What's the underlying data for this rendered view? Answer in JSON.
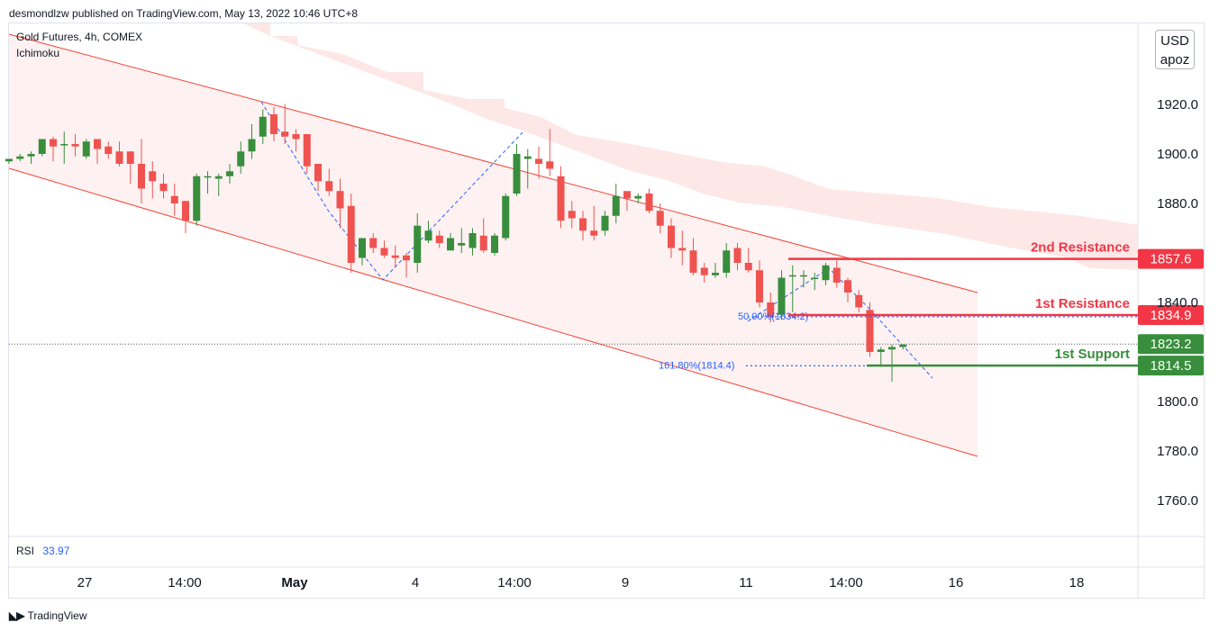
{
  "header": {
    "publisher_text": "desmondlzw published on TradingView.com, May 13, 2022 10:46 UTC+8"
  },
  "legend": {
    "symbol_line": "Gold Futures, 4h, COMEX",
    "indicator": "Ichimoku"
  },
  "currency": {
    "line1": "USD",
    "line2": "apoz"
  },
  "rsi": {
    "label": "RSI",
    "value": "33.97"
  },
  "footer": {
    "brand": "TradingView"
  },
  "colors": {
    "bull": "#26a69a",
    "bear": "#ef5350",
    "green_label": "#388e3c",
    "red_label": "#f23645",
    "cloud": "#fde4e4",
    "channel": "#fdeeee",
    "channel_line": "#f44336",
    "fib": "#2962ff"
  },
  "chart_data": {
    "type": "candlestick",
    "y_ticks": [
      1760,
      1780,
      1800,
      1820,
      1840,
      1860,
      1880,
      1900,
      1920,
      1940
    ],
    "y_tick_labels": [
      "1760.0",
      "1780.0",
      "1800.0",
      "",
      "1840.0",
      "",
      "1880.0",
      "1900.0",
      "1920.0",
      ""
    ],
    "ylim": [
      1746,
      1961
    ],
    "x_ticks": [
      {
        "label": "27",
        "bold": false
      },
      {
        "label": "14:00",
        "bold": false
      },
      {
        "label": "May",
        "bold": true
      },
      {
        "label": "4",
        "bold": false
      },
      {
        "label": "14:00",
        "bold": false
      },
      {
        "label": "9",
        "bold": false
      },
      {
        "label": "11",
        "bold": false
      },
      {
        "label": "14:00",
        "bold": false
      },
      {
        "label": "16",
        "bold": false
      },
      {
        "label": "18",
        "bold": false
      }
    ],
    "candles": [
      [
        1897,
        1898,
        1896,
        1898
      ],
      [
        1898,
        1900,
        1897,
        1899
      ],
      [
        1899,
        1901,
        1896,
        1900
      ],
      [
        1900,
        1906,
        1899,
        1906
      ],
      [
        1906,
        1907,
        1897,
        1903
      ],
      [
        1904,
        1909,
        1896,
        1904
      ],
      [
        1904,
        1908,
        1899,
        1903
      ],
      [
        1899,
        1906,
        1898,
        1905
      ],
      [
        1906,
        1906,
        1896,
        1902
      ],
      [
        1903,
        1905,
        1898,
        1900
      ],
      [
        1901,
        1905,
        1895,
        1896
      ],
      [
        1901,
        1901,
        1888,
        1896
      ],
      [
        1896,
        1906,
        1880,
        1886
      ],
      [
        1893,
        1897,
        1882,
        1889
      ],
      [
        1888,
        1892,
        1882,
        1885
      ],
      [
        1883,
        1888,
        1875,
        1880
      ],
      [
        1881,
        1881,
        1868,
        1873
      ],
      [
        1873,
        1892,
        1871,
        1891
      ],
      [
        1891,
        1893,
        1884,
        1891
      ],
      [
        1890,
        1892,
        1883,
        1891
      ],
      [
        1891,
        1896,
        1888,
        1893
      ],
      [
        1895,
        1905,
        1892,
        1901
      ],
      [
        1901,
        1912,
        1898,
        1906
      ],
      [
        1907,
        1918,
        1904,
        1915
      ],
      [
        1916,
        1919,
        1905,
        1908
      ],
      [
        1909,
        1920,
        1904,
        1907
      ],
      [
        1908,
        1910,
        1901,
        1906
      ],
      [
        1908,
        1908,
        1892,
        1895
      ],
      [
        1896,
        1896,
        1885,
        1889
      ],
      [
        1889,
        1894,
        1883,
        1885
      ],
      [
        1885,
        1890,
        1870,
        1878
      ],
      [
        1879,
        1884,
        1852,
        1856
      ],
      [
        1858,
        1866,
        1855,
        1866
      ],
      [
        1866,
        1868,
        1860,
        1862
      ],
      [
        1862,
        1865,
        1858,
        1859
      ],
      [
        1859,
        1863,
        1854,
        1858
      ],
      [
        1859,
        1860,
        1850,
        1857
      ],
      [
        1856,
        1876,
        1852,
        1871
      ],
      [
        1865,
        1873,
        1864,
        1869
      ],
      [
        1867,
        1869,
        1862,
        1864
      ],
      [
        1861,
        1868,
        1861,
        1866
      ],
      [
        1863,
        1870,
        1860,
        1864
      ],
      [
        1862,
        1870,
        1859,
        1868
      ],
      [
        1867,
        1874,
        1860,
        1861
      ],
      [
        1860,
        1868,
        1859,
        1867
      ],
      [
        1866,
        1884,
        1865,
        1883
      ],
      [
        1884,
        1904,
        1883,
        1900
      ],
      [
        1898,
        1902,
        1886,
        1899
      ],
      [
        1898,
        1903,
        1890,
        1896
      ],
      [
        1897,
        1910,
        1891,
        1894
      ],
      [
        1891,
        1895,
        1870,
        1873
      ],
      [
        1877,
        1881,
        1870,
        1874
      ],
      [
        1874,
        1877,
        1865,
        1869
      ],
      [
        1869,
        1879,
        1865,
        1867
      ],
      [
        1869,
        1877,
        1867,
        1875
      ],
      [
        1875,
        1888,
        1872,
        1883
      ],
      [
        1885,
        1884,
        1877,
        1882
      ],
      [
        1882,
        1884,
        1880,
        1883
      ],
      [
        1884,
        1886,
        1876,
        1877
      ],
      [
        1877,
        1880,
        1868,
        1871
      ],
      [
        1871,
        1874,
        1858,
        1862
      ],
      [
        1862,
        1869,
        1855,
        1861
      ],
      [
        1861,
        1866,
        1851,
        1852
      ],
      [
        1854,
        1856,
        1848,
        1851
      ],
      [
        1851,
        1856,
        1850,
        1852
      ],
      [
        1852,
        1864,
        1850,
        1861
      ],
      [
        1862,
        1864,
        1853,
        1856
      ],
      [
        1856,
        1862,
        1852,
        1853
      ],
      [
        1853,
        1857,
        1838,
        1840
      ],
      [
        1840,
        1844,
        1832,
        1834
      ],
      [
        1835,
        1853,
        1833,
        1850
      ],
      [
        1851,
        1855,
        1836,
        1851
      ],
      [
        1851,
        1853,
        1846,
        1851
      ],
      [
        1850,
        1852,
        1845,
        1850
      ],
      [
        1849,
        1856,
        1847,
        1855
      ],
      [
        1854,
        1857,
        1846,
        1848
      ],
      [
        1849,
        1850,
        1840,
        1844
      ],
      [
        1843,
        1845,
        1836,
        1838
      ],
      [
        1837,
        1840,
        1818,
        1820
      ],
      [
        1820,
        1822,
        1814,
        1821
      ],
      [
        1821,
        1823,
        1808,
        1822
      ],
      [
        1822,
        1823,
        1821,
        1823
      ]
    ],
    "levels": [
      {
        "label": "2nd Resistance",
        "value": 1857.6,
        "price_label": "1857.6",
        "kind": "resistance"
      },
      {
        "label": "1st Resistance",
        "value": 1834.9,
        "price_label": "1834.9",
        "kind": "resistance"
      },
      {
        "label": "1st Support",
        "value": 1814.5,
        "price_label": "1814.5",
        "kind": "support"
      }
    ],
    "last_price": {
      "value": 1823.2,
      "price_label": "1823.2"
    },
    "fib_labels": [
      {
        "text": "50.00%(1834.2)",
        "value": 1834.2
      },
      {
        "text": "161.80%(1814.4)",
        "value": 1814.4
      }
    ],
    "channel": {
      "upper": [
        [
          1917,
          1
        ]
      ],
      "note": ""
    },
    "grid": false
  }
}
